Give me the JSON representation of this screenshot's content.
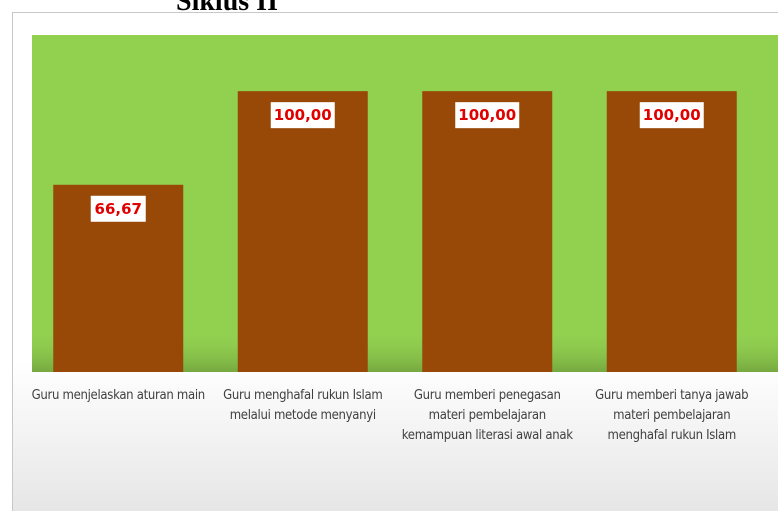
{
  "chart_data": {
    "type": "bar",
    "title": "Siklus II",
    "categories": [
      "Guru menjelaskan aturan main",
      "Guru menghafal rukun Islam melalui metode menyanyi",
      "Guru memberi penegasan materi pembelajaran kemampuan literasi awal anak",
      "Guru memberi tanya jawab materi pembelajaran menghafal rukun Islam"
    ],
    "values": [
      66.67,
      100,
      100,
      100
    ],
    "value_labels": [
      "66,67",
      "100,00",
      "100,00",
      "100,00"
    ],
    "color": "#984807",
    "ylim": [
      0,
      120
    ]
  }
}
